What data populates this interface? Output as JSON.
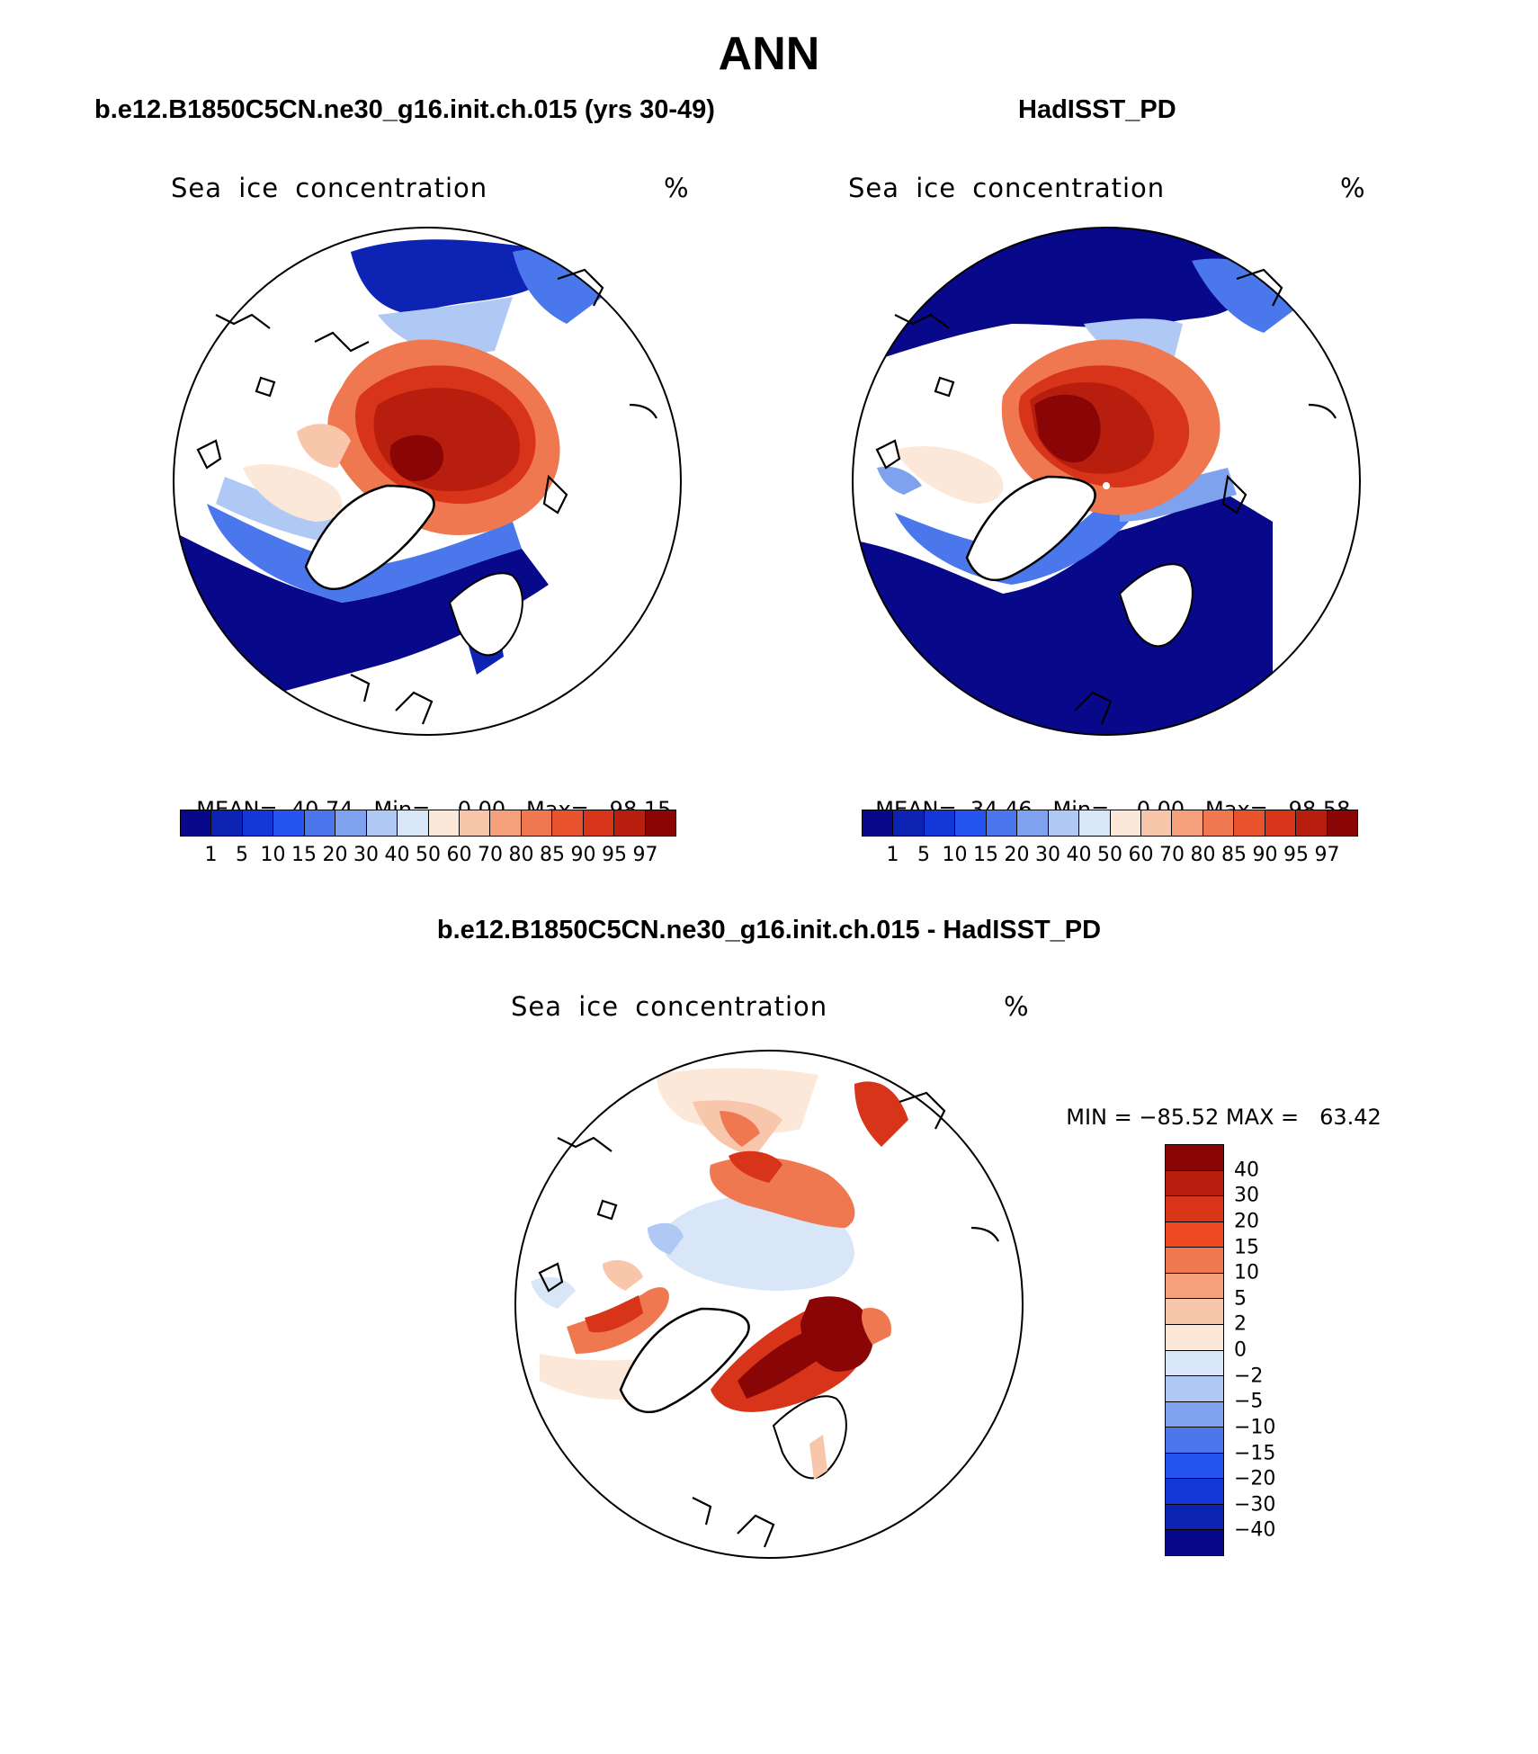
{
  "title": "ANN",
  "panels": [
    {
      "title": "b.e12.B1850C5CN.ne30_g16.init.ch.015 (yrs 30-49)",
      "variable": "Sea ice concentration",
      "units": "%",
      "stats": {
        "mean_label": "MEAN=",
        "mean": "40.74",
        "min_label": "Min=",
        "min": "0.00",
        "max_label": "Max=",
        "max": "98.15"
      }
    },
    {
      "title": "HadISST_PD",
      "variable": "Sea ice concentration",
      "units": "%",
      "stats": {
        "mean_label": "MEAN=",
        "mean": "34.46",
        "min_label": "Min=",
        "min": "0.00",
        "max_label": "Max=",
        "max": "98.58"
      }
    },
    {
      "title": "b.e12.B1850C5CN.ne30_g16.init.ch.015 - HadISST_PD",
      "variable": "Sea ice concentration",
      "units": "%",
      "stats": {
        "min_label": "MIN =",
        "min": "−85.52",
        "max_label": "MAX =",
        "max": "63.42"
      }
    }
  ],
  "colorbar_abs": {
    "levels": [
      "1",
      "5",
      "10",
      "15",
      "20",
      "30",
      "40",
      "50",
      "60",
      "70",
      "80",
      "85",
      "90",
      "95",
      "97"
    ],
    "colors": [
      "#08088a",
      "#0c23b4",
      "#1438d8",
      "#2654f0",
      "#4a78ec",
      "#7ea2ee",
      "#b0c8f4",
      "#d8e6f8",
      "#fbe8d8",
      "#f8c6aa",
      "#f4a07a",
      "#f07850",
      "#e8522c",
      "#d8341a",
      "#b81e0e",
      "#8a0606"
    ]
  },
  "colorbar_diff": {
    "levels": [
      "40",
      "30",
      "20",
      "15",
      "10",
      "5",
      "2",
      "0",
      "−2",
      "−5",
      "−10",
      "−15",
      "−20",
      "−30",
      "−40"
    ],
    "colors_top_to_bottom": [
      "#8a0606",
      "#b81e0e",
      "#d8341a",
      "#f04a22",
      "#f07850",
      "#f4a07a",
      "#f8c6aa",
      "#fbe8d8",
      "#d8e6f8",
      "#b0c8f4",
      "#7ea2ee",
      "#4a78ec",
      "#2654f0",
      "#1438d8",
      "#0c23b4",
      "#08088a"
    ]
  }
}
